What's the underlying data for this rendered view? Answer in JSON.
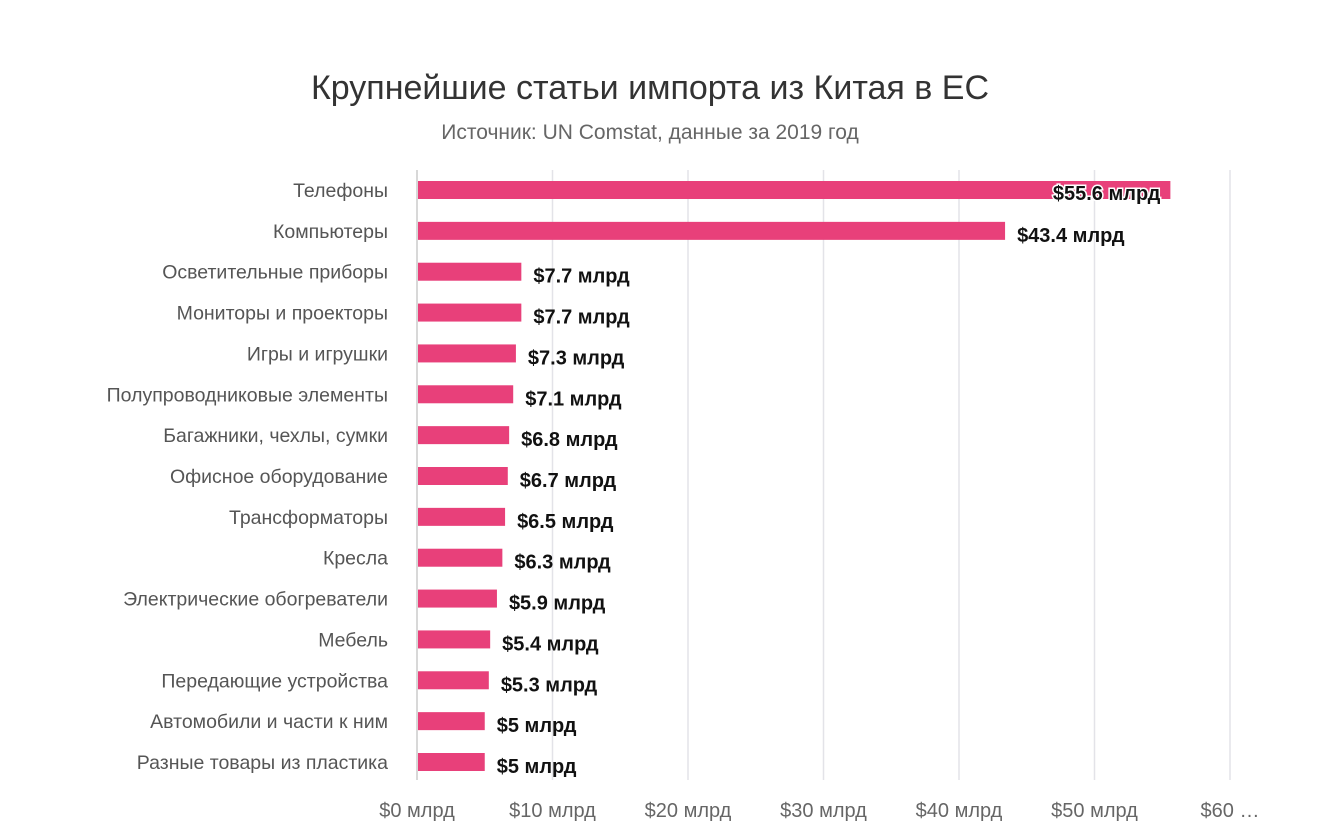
{
  "chart_data": {
    "type": "bar",
    "orientation": "horizontal",
    "title": "Крупнейшие статьи импорта из Китая в ЕС",
    "subtitle": "Источник: UN Comstat, данные за 2019 год",
    "xlabel": "",
    "ylabel": "",
    "xlim": [
      0,
      60
    ],
    "grid": true,
    "bar_color": "#e8407a",
    "categories": [
      "Телефоны",
      "Компьютеры",
      "Осветительные приборы",
      "Мониторы и проекторы",
      "Игры и игрушки",
      "Полупроводниковые элементы",
      "Багажники, чехлы, сумки",
      "Офисное оборудование",
      "Трансформаторы",
      "Кресла",
      "Электрические обогреватели",
      "Мебель",
      "Передающие устройства",
      "Автомобили и части к ним",
      "Разные товары из пластика"
    ],
    "values": [
      55.6,
      43.4,
      7.7,
      7.7,
      7.3,
      7.1,
      6.8,
      6.7,
      6.5,
      6.3,
      5.9,
      5.4,
      5.3,
      5,
      5
    ],
    "data_labels": [
      "$55.6 млрд",
      "$43.4 млрд",
      "$7.7 млрд",
      "$7.7 млрд",
      "$7.3 млрд",
      "$7.1 млрд",
      "$6.8 млрд",
      "$6.7 млрд",
      "$6.5 млрд",
      "$6.3 млрд",
      "$5.9 млрд",
      "$5.4 млрд",
      "$5.3 млрд",
      "$5 млрд",
      "$5 млрд"
    ],
    "x_ticks": [
      0,
      10,
      20,
      30,
      40,
      50,
      60
    ],
    "x_tick_labels": [
      "$0 млрд",
      "$10 млрд",
      "$20 млрд",
      "$30 млрд",
      "$40 млрд",
      "$50 млрд",
      "$60 …"
    ]
  }
}
